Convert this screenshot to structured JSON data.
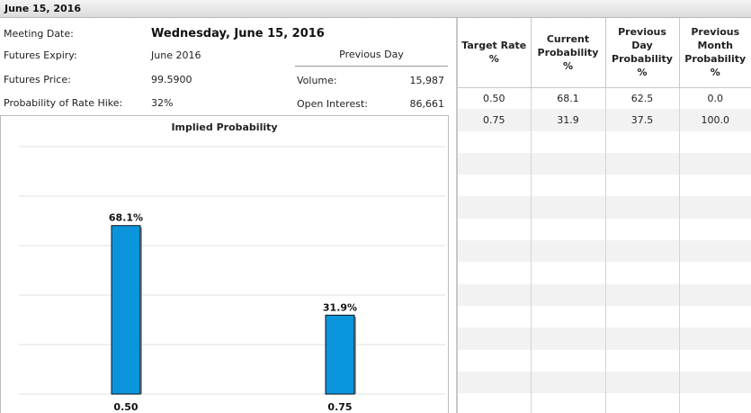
{
  "tab": {
    "title": "June 15, 2016"
  },
  "summary": {
    "meeting_date_label": "Meeting Date:",
    "meeting_date_value": "Wednesday, June 15, 2016",
    "futures_expiry_label": "Futures Expiry:",
    "futures_expiry_value": "June 2016",
    "futures_price_label": "Futures Price:",
    "futures_price_value": "99.5900",
    "prob_hike_label": "Probability of Rate Hike:",
    "prob_hike_value": "32%",
    "previous_day_header": "Previous Day",
    "volume_label": "Volume:",
    "volume_value": "15,987",
    "open_interest_label": "Open Interest:",
    "open_interest_value": "86,661"
  },
  "chart_data": {
    "type": "bar",
    "title": "Implied Probability",
    "categories": [
      "0.50",
      "0.75"
    ],
    "values": [
      68.1,
      31.9
    ],
    "data_labels": [
      "68.1%",
      "31.9%"
    ],
    "ylim": [
      0,
      100
    ],
    "grid": true,
    "bar_color": "#0a94dc"
  },
  "table": {
    "headers": [
      "Target Rate %",
      "Current Probability %",
      "Previous Day Probability %",
      "Previous Month Probability %"
    ],
    "rows": [
      [
        "0.50",
        "68.1",
        "62.5",
        "0.0"
      ],
      [
        "0.75",
        "31.9",
        "37.5",
        "100.0"
      ]
    ]
  }
}
